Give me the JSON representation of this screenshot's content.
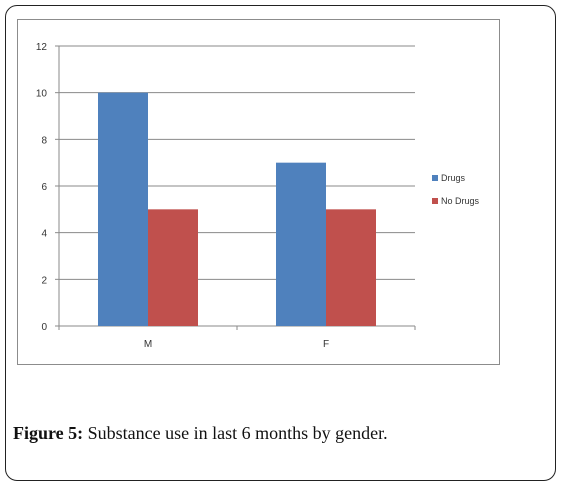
{
  "caption": {
    "label": "Figure 5:",
    "text": " Substance use in last 6 months by gender."
  },
  "chart_data": {
    "type": "bar",
    "categories": [
      "M",
      "F"
    ],
    "series": [
      {
        "name": "Drugs",
        "values": [
          10,
          7
        ],
        "color": "#4f81bd"
      },
      {
        "name": "No Drugs",
        "values": [
          5,
          5
        ],
        "color": "#c0504d"
      }
    ],
    "title": "",
    "xlabel": "",
    "ylabel": "",
    "ylim": [
      0,
      12
    ],
    "yticks": [
      "0",
      "2",
      "4",
      "6",
      "8",
      "10",
      "12"
    ],
    "grid": true,
    "legend_position": "right"
  }
}
